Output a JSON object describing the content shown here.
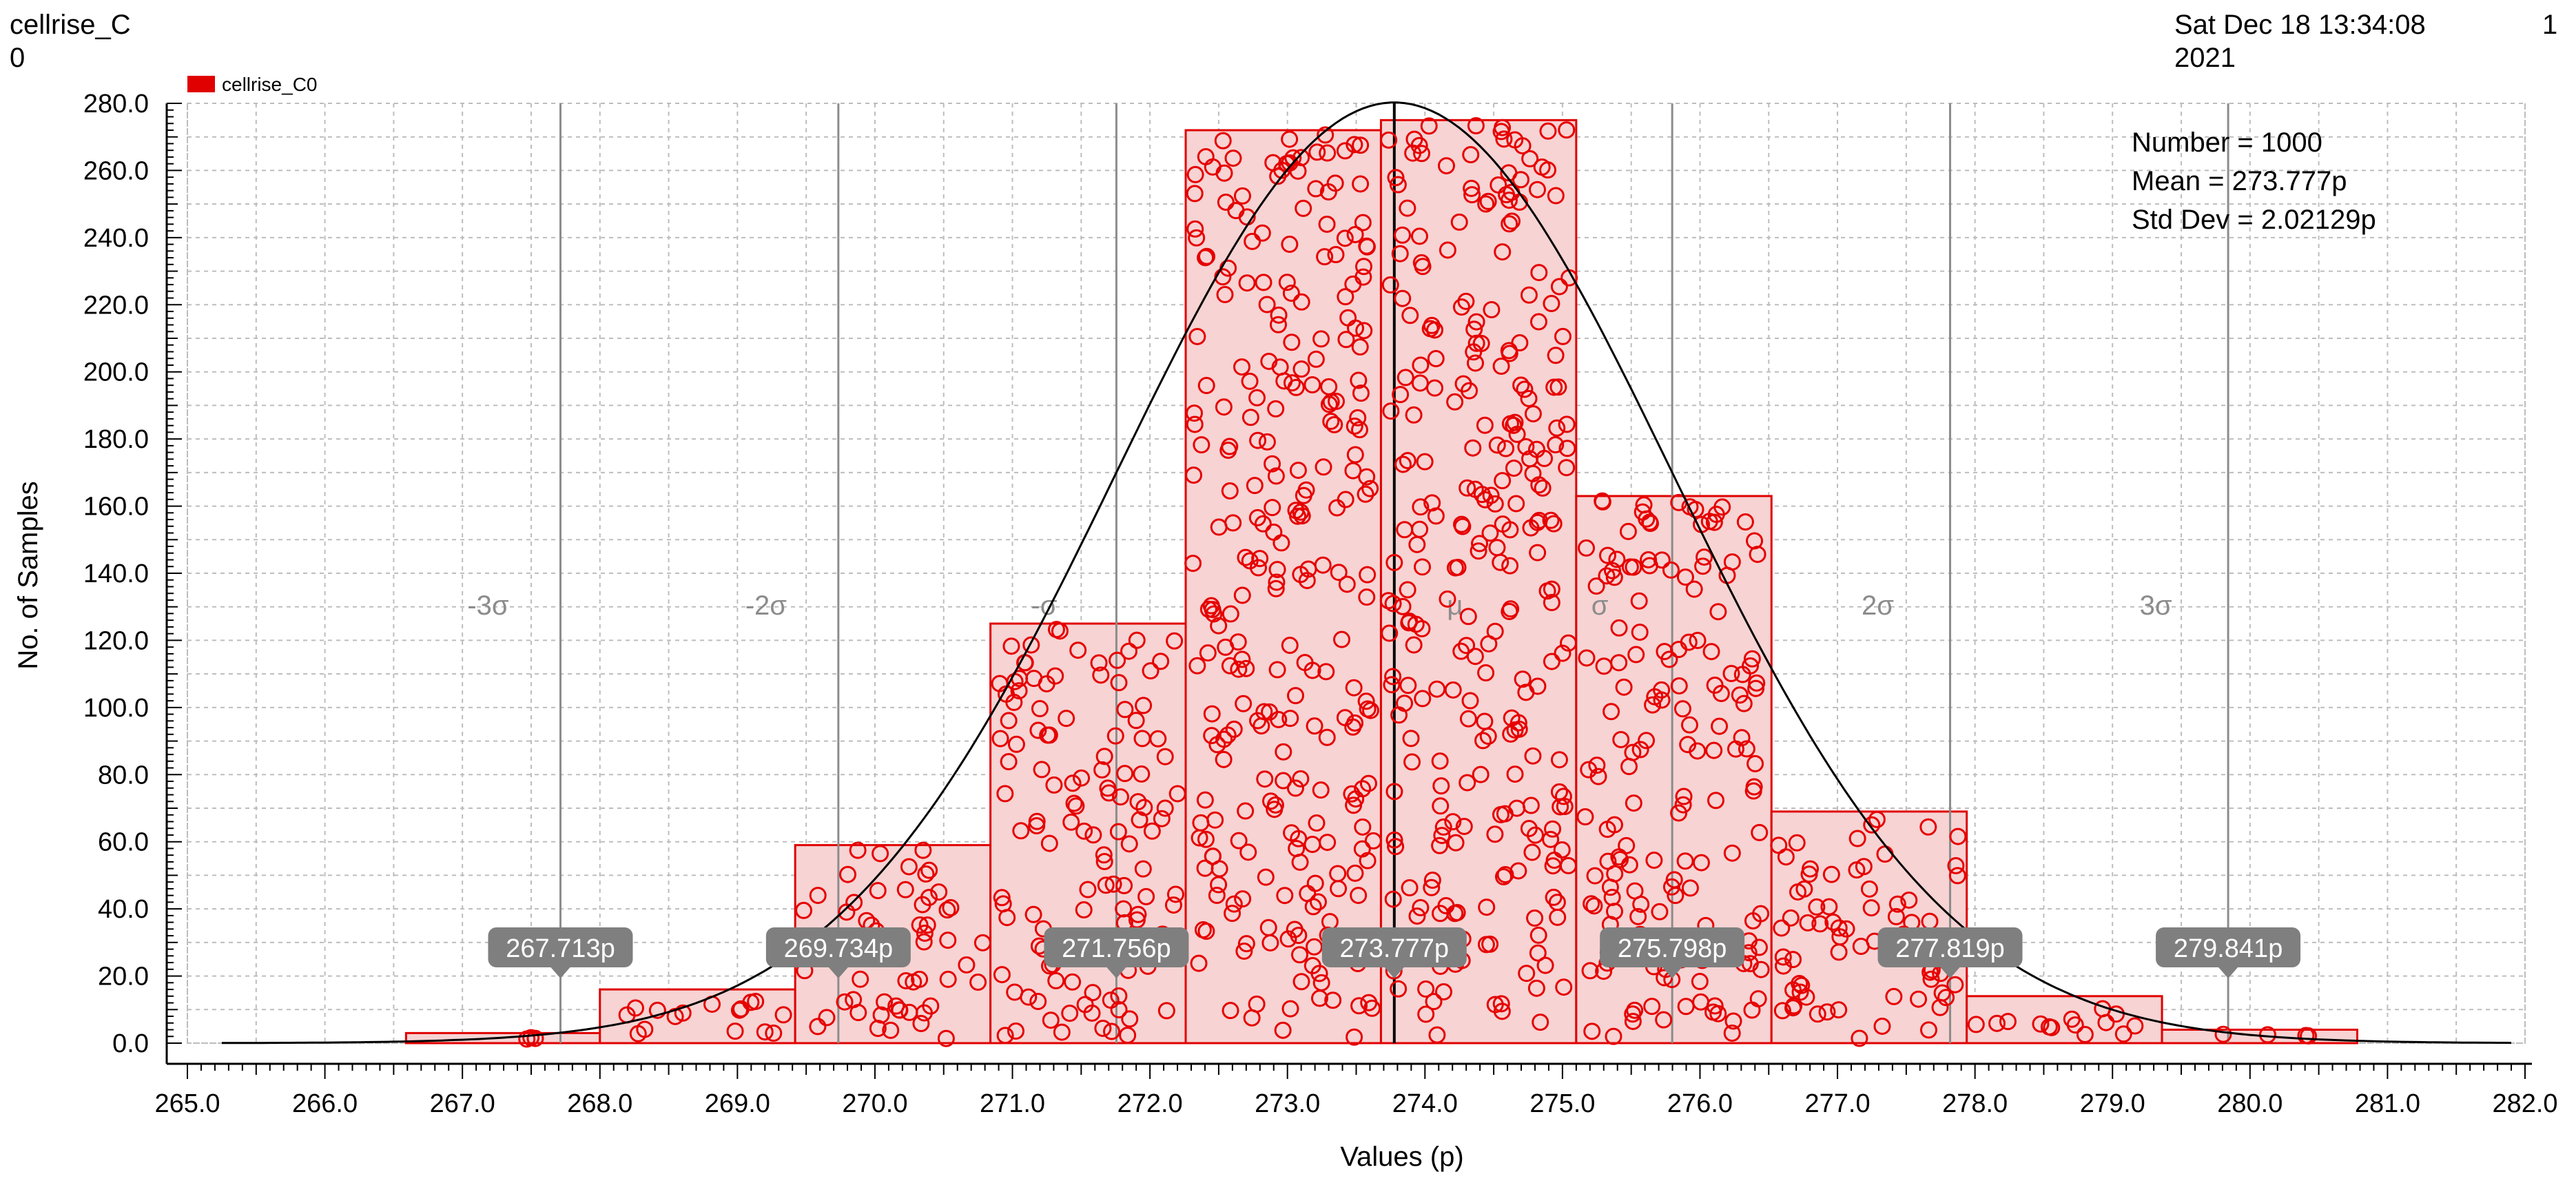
{
  "header": {
    "title_line1": "cellrise_C",
    "title_line2": "0",
    "date_line1": "Sat Dec 18 13:34:08",
    "date_line2": "2021",
    "page_number": "1"
  },
  "chart_data": {
    "type": "bar",
    "legend": {
      "label": "cellrise_C0",
      "placement": "top-left",
      "color": "#e00000"
    },
    "xlabel": "Values (p)",
    "ylabel": "No. of Samples",
    "xlim": [
      265.0,
      282.0
    ],
    "ylim": [
      0,
      280
    ],
    "x_ticks": [
      "265.0",
      "266.0",
      "267.0",
      "268.0",
      "269.0",
      "270.0",
      "271.0",
      "272.0",
      "273.0",
      "274.0",
      "275.0",
      "276.0",
      "277.0",
      "278.0",
      "279.0",
      "280.0",
      "281.0",
      "282.0"
    ],
    "y_ticks": [
      "0.0",
      "20.0",
      "40.0",
      "60.0",
      "80.0",
      "100.0",
      "120.0",
      "140.0",
      "160.0",
      "180.0",
      "200.0",
      "220.0",
      "240.0",
      "260.0",
      "280.0"
    ],
    "grid": true,
    "bins": [
      {
        "x0": 266.59,
        "x1": 268.0,
        "count": 3
      },
      {
        "x0": 268.0,
        "x1": 269.42,
        "count": 16
      },
      {
        "x0": 269.42,
        "x1": 270.84,
        "count": 59
      },
      {
        "x0": 270.84,
        "x1": 272.26,
        "count": 125
      },
      {
        "x0": 272.26,
        "x1": 273.68,
        "count": 272
      },
      {
        "x0": 273.68,
        "x1": 275.1,
        "count": 275
      },
      {
        "x0": 275.1,
        "x1": 276.52,
        "count": 163
      },
      {
        "x0": 276.52,
        "x1": 277.94,
        "count": 69
      },
      {
        "x0": 277.94,
        "x1": 279.36,
        "count": 14
      },
      {
        "x0": 279.36,
        "x1": 280.78,
        "count": 4
      }
    ],
    "stats": {
      "number": "Number = 1000",
      "mean": "Mean = 273.777p",
      "std_dev": "Std Dev = 2.02129p",
      "mean_value": 273.777,
      "std_value": 2.02129,
      "n": 1000
    },
    "sigma_lines": [
      {
        "label": "-3σ",
        "x": 267.713,
        "marker": "267.713p"
      },
      {
        "label": "-2σ",
        "x": 269.734,
        "marker": "269.734p"
      },
      {
        "label": "-σ",
        "x": 271.756,
        "marker": "271.756p"
      },
      {
        "label": "μ",
        "x": 273.777,
        "marker": "273.777p"
      },
      {
        "label": "σ",
        "x": 275.798,
        "marker": "275.798p"
      },
      {
        "label": "2σ",
        "x": 277.819,
        "marker": "277.819p"
      },
      {
        "label": "3σ",
        "x": 279.841,
        "marker": "279.841p"
      }
    ],
    "colors": {
      "bar_fill": "#f7d3d3",
      "bar_stroke": "#e00000",
      "sample_point": "#e60000",
      "fit_curve": "#000000",
      "sigma_line": "#8c8c8c",
      "marker_bg": "#7f7f7f"
    }
  }
}
